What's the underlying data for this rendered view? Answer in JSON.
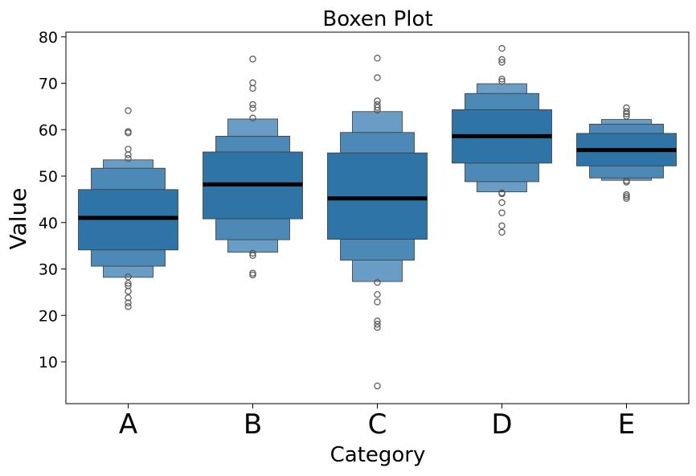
{
  "chart_data": {
    "type": "boxen",
    "title": "Boxen Plot",
    "xlabel": "Category",
    "ylabel": "Value",
    "categories": [
      "A",
      "B",
      "C",
      "D",
      "E"
    ],
    "ylim": [
      1,
      81
    ],
    "yticks": [
      10,
      20,
      30,
      40,
      50,
      60,
      70,
      80
    ],
    "grid": false,
    "legend": "none",
    "colors": {
      "box": "#2e74a7",
      "edge": "#3a3a3a",
      "median": "#000000",
      "outlier_edge": "#555555"
    },
    "groups": [
      {
        "category": "A",
        "median": 41.0,
        "levels": [
          {
            "lo": 34.1,
            "hi": 47.1
          },
          {
            "lo": 30.6,
            "hi": 51.7
          },
          {
            "lo": 28.2,
            "hi": 53.5
          }
        ],
        "outliers": [
          64.1,
          59.6,
          59.3,
          55.8,
          54.6,
          53.8,
          28.3,
          26.9,
          26.4,
          25.2,
          23.8,
          22.7,
          21.9
        ]
      },
      {
        "category": "B",
        "median": 48.2,
        "levels": [
          {
            "lo": 40.8,
            "hi": 55.2
          },
          {
            "lo": 36.3,
            "hi": 58.6
          },
          {
            "lo": 33.6,
            "hi": 62.3
          }
        ],
        "outliers": [
          75.2,
          70.1,
          68.9,
          65.4,
          64.6,
          62.5,
          33.4,
          32.9,
          29.1,
          28.7
        ]
      },
      {
        "category": "C",
        "median": 45.2,
        "levels": [
          {
            "lo": 36.4,
            "hi": 55.0
          },
          {
            "lo": 31.9,
            "hi": 59.4
          },
          {
            "lo": 27.3,
            "hi": 63.9
          }
        ],
        "outliers": [
          75.4,
          71.2,
          66.2,
          65.4,
          64.8,
          64.2,
          27.1,
          24.5,
          22.9,
          18.8,
          18.1,
          17.4,
          4.8
        ]
      },
      {
        "category": "D",
        "median": 58.6,
        "levels": [
          {
            "lo": 52.8,
            "hi": 64.3
          },
          {
            "lo": 48.8,
            "hi": 67.8
          },
          {
            "lo": 46.6,
            "hi": 69.9
          }
        ],
        "outliers": [
          77.5,
          75.1,
          74.5,
          70.9,
          70.4,
          46.4,
          46.2,
          44.3,
          42.1,
          39.3,
          37.9
        ]
      },
      {
        "category": "E",
        "median": 55.6,
        "levels": [
          {
            "lo": 52.2,
            "hi": 59.2
          },
          {
            "lo": 49.6,
            "hi": 61.2
          },
          {
            "lo": 49.1,
            "hi": 62.2
          }
        ],
        "outliers": [
          64.7,
          63.9,
          63.4,
          62.9,
          49.0,
          48.7,
          46.0,
          45.6,
          45.2
        ]
      }
    ]
  }
}
